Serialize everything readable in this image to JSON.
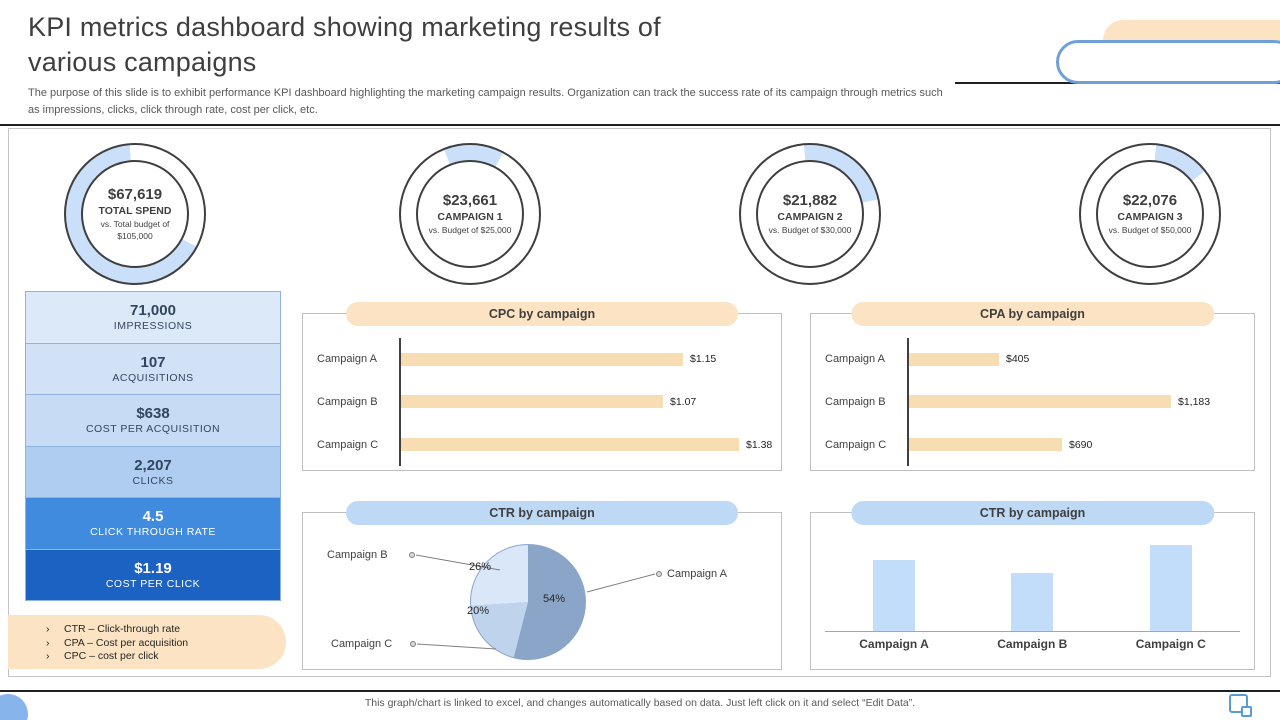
{
  "theme": {
    "peach": "#FBE3C3",
    "peach_bar": "#F8DDB2",
    "blue_pill": "#BED9F6",
    "bar_blue": "#C2DDF9",
    "ring_blue": "#C9DFFA",
    "circle_blue": "#86B4EB"
  },
  "header": {
    "title": "KPI metrics dashboard showing marketing results of various campaigns",
    "description": "The purpose of this slide is to exhibit performance KPI dashboard highlighting the marketing campaign results. Organization can track the success rate of its campaign through metrics such as impressions, clicks, click through rate, cost per click, etc."
  },
  "metrics": [
    {
      "value": "71,000",
      "label": "IMPRESSIONS",
      "bg": "#DCE9F8",
      "fg": "#33455E"
    },
    {
      "value": "107",
      "label": "ACQUISITIONS",
      "bg": "#D2E2F6",
      "fg": "#33455E"
    },
    {
      "value": "$638",
      "label": "COST PER ACQUISITION",
      "bg": "#C7DBF4",
      "fg": "#33455E"
    },
    {
      "value": "2,207",
      "label": "CLICKS",
      "bg": "#AFCDF0",
      "fg": "#33455E"
    },
    {
      "value": "4.5",
      "label": "CLICK THROUGH RATE",
      "bg": "#418BDE",
      "fg": "#FFFFFF"
    },
    {
      "value": "$1.19",
      "label": "COST PER CLICK",
      "bg": "#1C62C3",
      "fg": "#FFFFFF"
    }
  ],
  "legend": {
    "bullet": "›",
    "items": [
      "CTR – Click-through rate",
      "CPA – Cost per acquisition",
      "CPC – cost per click"
    ]
  },
  "footer": {
    "text": "This graph/chart is linked to excel, and changes automatically based on data. Just left click on it and select “Edit Data”."
  },
  "chart_data": [
    {
      "type": "donut",
      "title": "TOTAL SPEND",
      "value_label": "$67,619",
      "subtitle": "vs. Total budget of $105,000",
      "value": 67619,
      "budget": 105000,
      "ring": {
        "rotate": 118,
        "pct": 66
      }
    },
    {
      "type": "donut",
      "title": "CAMPAIGN 1",
      "value_label": "$23,661",
      "subtitle": "vs. Budget of $25,000",
      "value": 23661,
      "budget": 25000,
      "ring": {
        "rotate": 338,
        "pct": 14
      }
    },
    {
      "type": "donut",
      "title": "CAMPAIGN 2",
      "value_label": "$21,882",
      "subtitle": "vs. Budget of $30,000",
      "value": 21882,
      "budget": 30000,
      "ring": {
        "rotate": 355,
        "pct": 23
      }
    },
    {
      "type": "donut",
      "title": "CAMPAIGN 3",
      "value_label": "$22,076",
      "subtitle": "vs. Budget of $50,000",
      "value": 22076,
      "budget": 50000,
      "ring": {
        "rotate": 5,
        "pct": 13
      }
    },
    {
      "type": "bar",
      "orientation": "horizontal",
      "title": "CPC by campaign",
      "categories": [
        "Campaign A",
        "Campaign B",
        "Campaign C"
      ],
      "values": [
        1.15,
        1.07,
        1.38
      ],
      "value_labels": [
        "$1.15",
        "$1.07",
        "$1.38"
      ]
    },
    {
      "type": "bar",
      "orientation": "horizontal",
      "title": "CPA by campaign",
      "categories": [
        "Campaign A",
        "Campaign B",
        "Campaign C"
      ],
      "values": [
        405,
        1183,
        690
      ],
      "value_labels": [
        "$405",
        "$1,183",
        "$690"
      ]
    },
    {
      "type": "pie",
      "title": "CTR by campaign",
      "categories": [
        "Campaign A",
        "Campaign B",
        "Campaign C"
      ],
      "values": [
        54,
        26,
        20
      ],
      "value_labels": [
        "54%",
        "26%",
        "20%"
      ],
      "colors": [
        "#8BA5C8",
        "#D9E7F8",
        "#BFD3EC"
      ],
      "display_order": [
        0,
        2,
        1
      ]
    },
    {
      "type": "bar",
      "orientation": "vertical",
      "title": "CTR by campaign",
      "categories": [
        "Campaign A",
        "Campaign B",
        "Campaign C"
      ],
      "values": [
        0.82,
        0.67,
        1.0
      ],
      "value_labels": []
    }
  ]
}
